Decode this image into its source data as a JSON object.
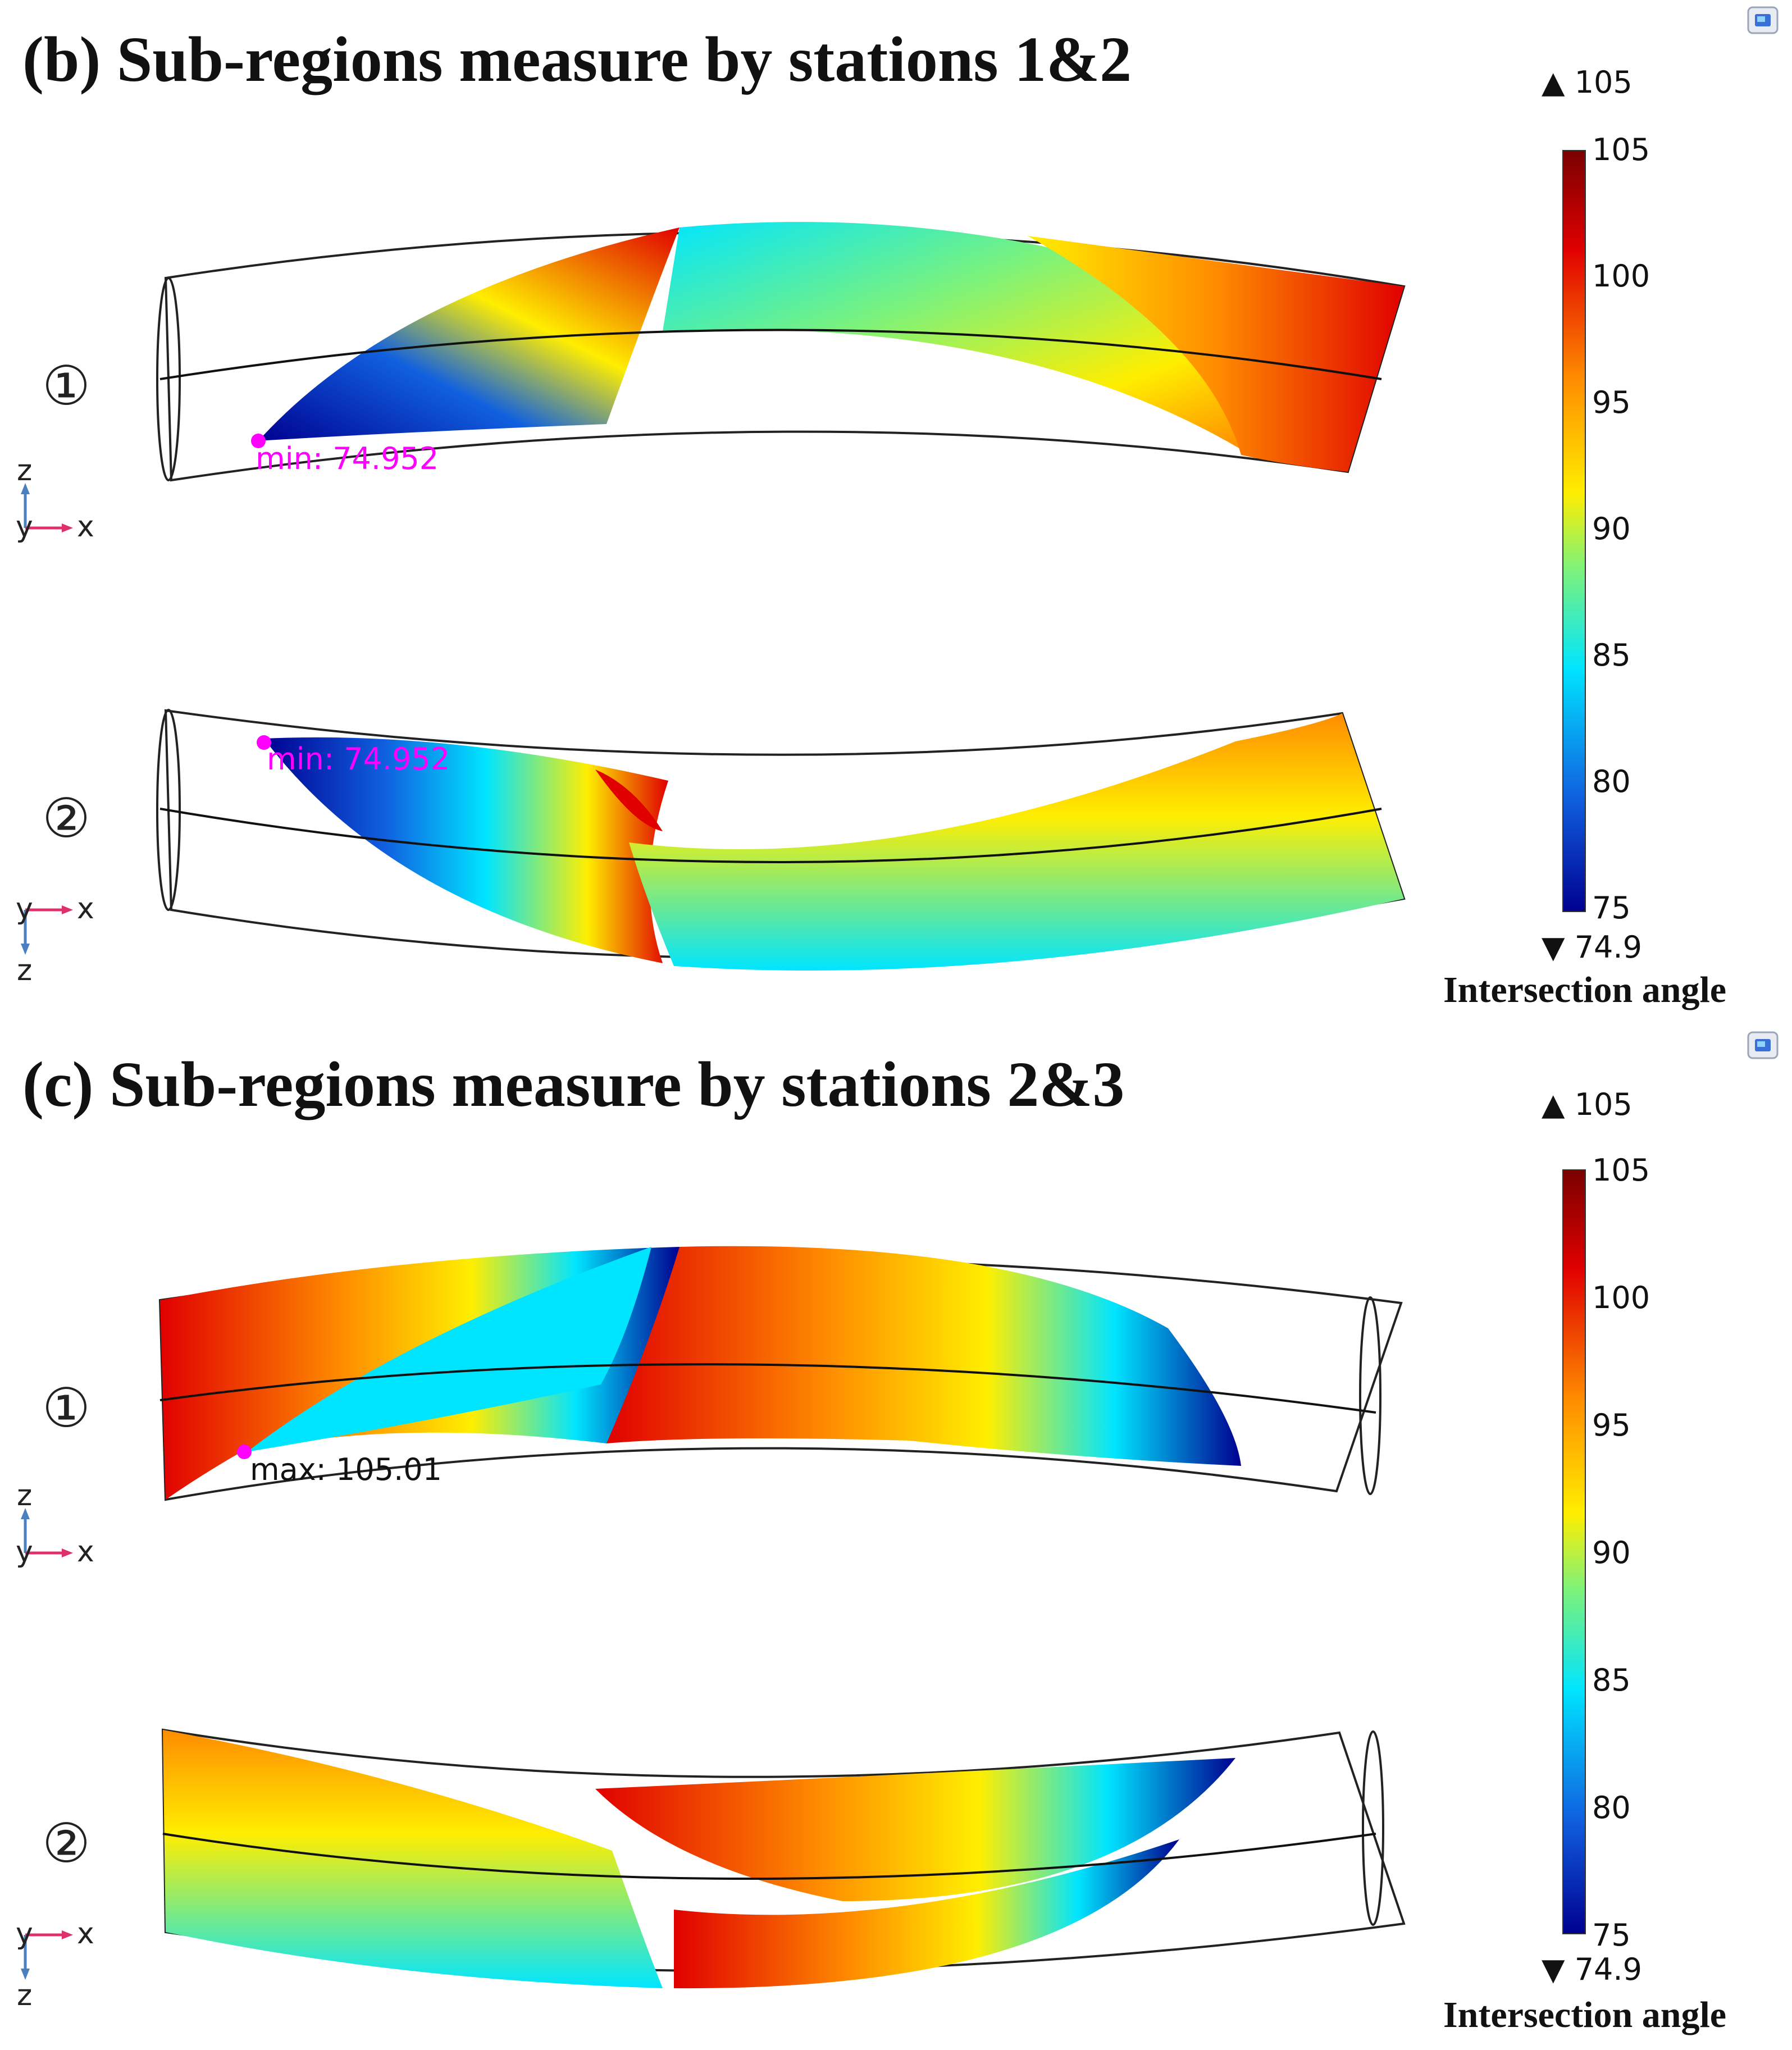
{
  "colors": {
    "dark_red": "#7a0000",
    "red": "#e00000",
    "orange": "#ff8c00",
    "yellow": "#ffee00",
    "green": "#7df27a",
    "cyan": "#00e5ff",
    "blue": "#1060e0",
    "dark_blue": "#000090",
    "marker": "#ff00ff"
  },
  "colorbar": {
    "ticks": [
      "105",
      "100",
      "95",
      "90",
      "85",
      "80",
      "75"
    ],
    "max_label": "▲ 105",
    "min_label": "▼ 74.9",
    "caption": "Intersection angle"
  },
  "panels": [
    {
      "id": "b",
      "title": "(b) Sub-regions measure by stations 1&2",
      "views": [
        {
          "number": "①",
          "axis": {
            "vertical": "z",
            "depth": "y",
            "horizontal": "x"
          },
          "annotation": "min: 74.952",
          "annotation_color": "#ff00ff"
        },
        {
          "number": "②",
          "axis": {
            "vertical": "z",
            "depth": "y",
            "horizontal": "x"
          },
          "annotation": "min: 74.952",
          "annotation_color": "#ff00ff"
        }
      ]
    },
    {
      "id": "c",
      "title": "(c) Sub-regions measure by stations 2&3",
      "views": [
        {
          "number": "①",
          "axis": {
            "vertical": "z",
            "depth": "y",
            "horizontal": "x"
          },
          "annotation": "max: 105.01",
          "annotation_color": "#111111"
        },
        {
          "number": "②",
          "axis": {
            "vertical": "z",
            "depth": "y",
            "horizontal": "x"
          },
          "annotation": "",
          "annotation_color": "#111111"
        }
      ]
    }
  ]
}
